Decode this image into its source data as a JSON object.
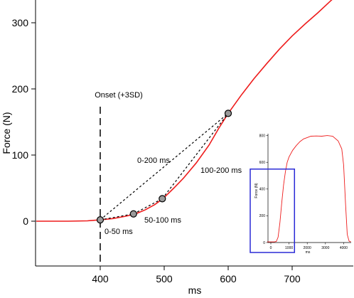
{
  "chart_data": [
    {
      "type": "line",
      "title": "",
      "xlabel": "ms",
      "ylabel": "Force (N)",
      "xlim": [
        300,
        780
      ],
      "ylim": [
        -65,
        335
      ],
      "x_ticks": [
        400,
        500,
        600,
        700
      ],
      "y_ticks": [
        0,
        100,
        200,
        300
      ],
      "x_tick_labels": [
        "400",
        "500",
        "600",
        "700"
      ],
      "y_tick_labels": [
        "0",
        "100",
        "200",
        "300"
      ],
      "grid": false,
      "legend": "none",
      "colors": {
        "curve": "#ee1c1c",
        "onset_line": "#000000",
        "marker_fill": "#9a9a9a"
      },
      "series": [
        {
          "x": [
            300,
            350,
            380,
            400,
            420,
            440,
            455,
            470,
            485,
            498,
            515,
            530,
            550,
            570,
            585,
            600,
            620,
            640,
            660,
            680,
            700,
            720,
            740,
            760,
            780
          ],
          "y": [
            0,
            0,
            0.5,
            2,
            4,
            7.5,
            11,
            17,
            25,
            34,
            50,
            65,
            88,
            115,
            140,
            163,
            190,
            215,
            238,
            260,
            280,
            298,
            315,
            333,
            350
          ]
        }
      ],
      "points": [
        {
          "x": 400,
          "y": 2
        },
        {
          "x": 452,
          "y": 11
        },
        {
          "x": 497,
          "y": 34
        },
        {
          "x": 600,
          "y": 163
        }
      ],
      "onset": {
        "x": 400,
        "label": "Onset (+3SD)"
      },
      "intervals": [
        {
          "label": "0-200 ms",
          "from": 0,
          "to": 3
        },
        {
          "label": "100-200 ms",
          "from": 2,
          "to": 3
        },
        {
          "label": "50-100 ms",
          "from": 1,
          "to": 2
        },
        {
          "label": "0-50 ms",
          "from": 0,
          "to": 1
        }
      ]
    },
    {
      "type": "line",
      "title": "",
      "xlabel": "ms",
      "ylabel": "Force (N)",
      "xlim": [
        -200,
        4700
      ],
      "ylim": [
        0,
        820
      ],
      "x_ticks": [
        0,
        1000,
        2000,
        3000,
        4000
      ],
      "y_ticks": [
        0,
        200,
        400,
        600,
        800
      ],
      "x_tick_labels": [
        "0",
        "1000",
        "2000",
        "3000",
        "4000"
      ],
      "y_tick_labels": [
        "0",
        "200",
        "400",
        "600",
        "800"
      ],
      "colors": {
        "curve": "#ee1c1c",
        "highlight_box": "#2a2ad6"
      },
      "series": [
        {
          "x": [
            -200,
            200,
            300,
            400,
            500,
            600,
            700,
            800,
            900,
            1000,
            1200,
            1400,
            1600,
            1800,
            2000,
            2200,
            2500,
            2800,
            3100,
            3400,
            3700,
            3900,
            4000,
            4100,
            4200,
            4300,
            4400
          ],
          "y": [
            5,
            5,
            8,
            40,
            150,
            300,
            430,
            530,
            600,
            640,
            690,
            725,
            755,
            775,
            785,
            795,
            797,
            795,
            800,
            795,
            760,
            700,
            580,
            300,
            60,
            10,
            5
          ]
        }
      ],
      "highlight_range": {
        "x": [
          -200,
          1300
        ],
        "y": [
          0,
          560
        ]
      }
    }
  ]
}
